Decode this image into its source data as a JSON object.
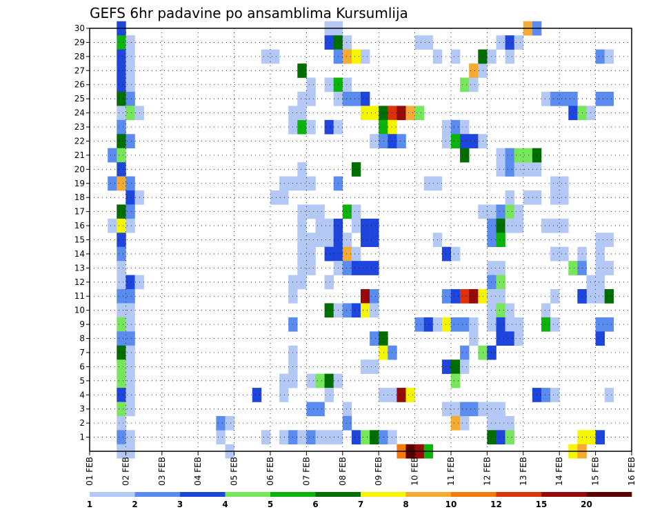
{
  "chart_data": {
    "type": "heatmap",
    "title": "GEFS 6hr padavine po ansamblima Kursumlija",
    "x_ticks": [
      "01 FEB",
      "02 FEB",
      "03 FEB",
      "04 FEB",
      "05 FEB",
      "06 FEB",
      "07 FEB",
      "08 FEB",
      "09 FEB",
      "10 FEB",
      "11 FEB",
      "12 FEB",
      "13 FEB",
      "14 FEB",
      "15 FEB",
      "16 FEB"
    ],
    "y_ticks": [
      1,
      2,
      3,
      4,
      5,
      6,
      7,
      8,
      9,
      10,
      11,
      12,
      13,
      14,
      15,
      16,
      17,
      18,
      19,
      20,
      21,
      22,
      23,
      24,
      25,
      26,
      27,
      28,
      29,
      30
    ],
    "y_range": [
      0,
      30
    ],
    "x_steps": 60,
    "grid": true,
    "colorbar": {
      "labels": [
        "1",
        "2",
        "3",
        "4",
        "5",
        "6",
        "7",
        "8",
        "10",
        "12",
        "15",
        "20"
      ],
      "colors": [
        "#b4c8f5",
        "#5a8cf0",
        "#1e46dc",
        "#78e65a",
        "#0ab40a",
        "#006e00",
        "#f5f500",
        "#f5aa32",
        "#f5780a",
        "#dc320a",
        "#960a0a",
        "#5a0000"
      ]
    },
    "cells": [
      [
        3,
        30,
        3
      ],
      [
        3,
        29,
        5
      ],
      [
        4,
        29,
        1
      ],
      [
        3,
        28,
        3
      ],
      [
        4,
        28,
        1
      ],
      [
        3,
        27,
        3
      ],
      [
        4,
        27,
        1
      ],
      [
        3,
        26,
        3
      ],
      [
        4,
        26,
        1
      ],
      [
        3,
        25,
        6
      ],
      [
        4,
        25,
        2
      ],
      [
        3,
        24,
        1
      ],
      [
        4,
        24,
        4
      ],
      [
        5,
        24,
        1
      ],
      [
        3,
        23,
        2
      ],
      [
        3,
        22,
        6
      ],
      [
        4,
        22,
        2
      ],
      [
        2,
        21,
        2
      ],
      [
        3,
        21,
        4
      ],
      [
        3,
        20,
        3
      ],
      [
        2,
        19,
        2
      ],
      [
        3,
        19,
        8
      ],
      [
        4,
        19,
        2
      ],
      [
        4,
        18,
        3
      ],
      [
        5,
        18,
        1
      ],
      [
        3,
        17,
        6
      ],
      [
        4,
        17,
        2
      ],
      [
        2,
        16,
        1
      ],
      [
        3,
        16,
        7
      ],
      [
        4,
        16,
        1
      ],
      [
        3,
        15,
        3
      ],
      [
        3,
        14,
        2
      ],
      [
        3,
        13,
        1
      ],
      [
        3,
        12,
        1
      ],
      [
        4,
        12,
        3
      ],
      [
        5,
        12,
        1
      ],
      [
        3,
        11,
        2
      ],
      [
        4,
        11,
        2
      ],
      [
        3,
        10,
        1
      ],
      [
        4,
        10,
        1
      ],
      [
        3,
        9,
        4
      ],
      [
        4,
        9,
        1
      ],
      [
        3,
        8,
        2
      ],
      [
        4,
        8,
        2
      ],
      [
        3,
        7,
        6
      ],
      [
        4,
        7,
        1
      ],
      [
        3,
        6,
        4
      ],
      [
        4,
        6,
        1
      ],
      [
        3,
        5,
        4
      ],
      [
        4,
        5,
        1
      ],
      [
        3,
        4,
        3
      ],
      [
        4,
        4,
        1
      ],
      [
        3,
        3,
        4
      ],
      [
        4,
        3,
        1
      ],
      [
        3,
        2,
        1
      ],
      [
        3,
        1,
        2
      ],
      [
        4,
        1,
        1
      ],
      [
        3,
        0,
        1
      ],
      [
        4,
        0,
        1
      ],
      [
        15,
        0,
        1
      ],
      [
        14,
        1,
        1
      ],
      [
        14,
        2,
        2
      ],
      [
        15,
        2,
        1
      ],
      [
        18,
        4,
        3
      ],
      [
        19,
        1,
        1
      ],
      [
        22,
        6,
        1
      ],
      [
        22,
        7,
        1
      ],
      [
        22,
        9,
        2
      ],
      [
        22,
        11,
        1
      ],
      [
        22,
        12,
        1
      ],
      [
        23,
        12,
        1
      ],
      [
        21,
        19,
        1
      ],
      [
        22,
        19,
        1
      ],
      [
        23,
        19,
        1
      ],
      [
        24,
        19,
        1
      ],
      [
        20,
        18,
        1
      ],
      [
        21,
        18,
        1
      ],
      [
        21,
        5,
        1
      ],
      [
        22,
        5,
        1
      ],
      [
        21,
        4,
        1
      ],
      [
        21,
        1,
        1
      ],
      [
        22,
        1,
        2
      ],
      [
        23,
        1,
        1
      ],
      [
        19,
        28,
        1
      ],
      [
        20,
        28,
        1
      ],
      [
        22,
        23,
        1
      ],
      [
        23,
        23,
        5
      ],
      [
        24,
        23,
        1
      ],
      [
        22,
        24,
        1
      ],
      [
        23,
        24,
        1
      ],
      [
        23,
        25,
        1
      ],
      [
        24,
        25,
        1
      ],
      [
        23,
        27,
        6
      ],
      [
        24,
        26,
        1
      ],
      [
        23,
        20,
        1
      ],
      [
        23,
        17,
        1
      ],
      [
        23,
        16,
        1
      ],
      [
        23,
        15,
        1
      ],
      [
        23,
        14,
        1
      ],
      [
        23,
        13,
        1
      ],
      [
        24,
        13,
        1
      ],
      [
        24,
        14,
        1
      ],
      [
        24,
        15,
        1
      ],
      [
        25,
        15,
        1
      ],
      [
        25,
        16,
        1
      ],
      [
        24,
        17,
        1
      ],
      [
        26,
        30,
        1
      ],
      [
        27,
        30,
        1
      ],
      [
        26,
        29,
        3
      ],
      [
        27,
        29,
        6
      ],
      [
        28,
        29,
        1
      ],
      [
        27,
        28,
        2
      ],
      [
        28,
        28,
        8
      ],
      [
        29,
        28,
        7
      ],
      [
        30,
        28,
        1
      ],
      [
        26,
        26,
        1
      ],
      [
        27,
        26,
        5
      ],
      [
        28,
        26,
        1
      ],
      [
        27,
        25,
        1
      ],
      [
        28,
        25,
        2
      ],
      [
        29,
        25,
        2
      ],
      [
        30,
        25,
        3
      ],
      [
        30,
        24,
        7
      ],
      [
        31,
        24,
        7
      ],
      [
        32,
        24,
        6
      ],
      [
        33,
        24,
        10
      ],
      [
        34,
        24,
        11
      ],
      [
        35,
        24,
        8
      ],
      [
        36,
        24,
        4
      ],
      [
        32,
        23,
        5
      ],
      [
        33,
        23,
        7
      ],
      [
        31,
        22,
        1
      ],
      [
        32,
        22,
        2
      ],
      [
        33,
        22,
        3
      ],
      [
        34,
        22,
        2
      ],
      [
        26,
        23,
        3
      ],
      [
        27,
        23,
        1
      ],
      [
        29,
        20,
        6
      ],
      [
        27,
        19,
        2
      ],
      [
        25,
        17,
        1
      ],
      [
        28,
        17,
        5
      ],
      [
        29,
        17,
        1
      ],
      [
        26,
        16,
        1
      ],
      [
        27,
        16,
        3
      ],
      [
        29,
        16,
        1
      ],
      [
        30,
        16,
        3
      ],
      [
        31,
        16,
        3
      ],
      [
        26,
        15,
        1
      ],
      [
        27,
        15,
        3
      ],
      [
        28,
        15,
        1
      ],
      [
        30,
        15,
        3
      ],
      [
        31,
        15,
        3
      ],
      [
        26,
        14,
        3
      ],
      [
        27,
        14,
        3
      ],
      [
        28,
        14,
        8
      ],
      [
        29,
        14,
        1
      ],
      [
        27,
        13,
        1
      ],
      [
        28,
        13,
        2
      ],
      [
        29,
        13,
        3
      ],
      [
        30,
        13,
        3
      ],
      [
        31,
        13,
        3
      ],
      [
        26,
        12,
        1
      ],
      [
        30,
        11,
        11
      ],
      [
        31,
        11,
        2
      ],
      [
        26,
        10,
        6
      ],
      [
        27,
        10,
        1
      ],
      [
        28,
        10,
        2
      ],
      [
        29,
        10,
        3
      ],
      [
        30,
        10,
        7
      ],
      [
        31,
        10,
        1
      ],
      [
        31,
        8,
        2
      ],
      [
        32,
        8,
        6
      ],
      [
        32,
        7,
        7
      ],
      [
        33,
        7,
        2
      ],
      [
        30,
        6,
        1
      ],
      [
        31,
        6,
        1
      ],
      [
        24,
        5,
        1
      ],
      [
        25,
        5,
        4
      ],
      [
        26,
        5,
        6
      ],
      [
        27,
        5,
        1
      ],
      [
        26,
        4,
        1
      ],
      [
        24,
        3,
        2
      ],
      [
        25,
        3,
        2
      ],
      [
        28,
        3,
        1
      ],
      [
        28,
        2,
        2
      ],
      [
        24,
        1,
        2
      ],
      [
        25,
        1,
        1
      ],
      [
        26,
        1,
        1
      ],
      [
        27,
        1,
        1
      ],
      [
        29,
        1,
        3
      ],
      [
        30,
        1,
        4
      ],
      [
        31,
        1,
        6
      ],
      [
        32,
        1,
        2
      ],
      [
        33,
        1,
        1
      ],
      [
        34,
        0,
        9
      ],
      [
        35,
        0,
        12
      ],
      [
        36,
        0,
        11
      ],
      [
        37,
        0,
        5
      ],
      [
        32,
        4,
        1
      ],
      [
        33,
        4,
        1
      ],
      [
        34,
        4,
        11
      ],
      [
        35,
        4,
        7
      ],
      [
        30,
        6,
        1
      ],
      [
        36,
        29,
        1
      ],
      [
        37,
        29,
        1
      ],
      [
        38,
        28,
        1
      ],
      [
        40,
        28,
        1
      ],
      [
        39,
        23,
        1
      ],
      [
        40,
        23,
        2
      ],
      [
        41,
        23,
        1
      ],
      [
        39,
        22,
        1
      ],
      [
        40,
        22,
        5
      ],
      [
        41,
        22,
        3
      ],
      [
        42,
        22,
        3
      ],
      [
        43,
        22,
        1
      ],
      [
        41,
        21,
        6
      ],
      [
        41,
        26,
        4
      ],
      [
        42,
        26,
        1
      ],
      [
        42,
        27,
        8
      ],
      [
        43,
        27,
        1
      ],
      [
        43,
        28,
        6
      ],
      [
        44,
        28,
        1
      ],
      [
        46,
        28,
        1
      ],
      [
        45,
        29,
        1
      ],
      [
        46,
        29,
        3
      ],
      [
        47,
        29,
        1
      ],
      [
        48,
        30,
        8
      ],
      [
        49,
        30,
        2
      ],
      [
        37,
        19,
        1
      ],
      [
        38,
        19,
        1
      ],
      [
        38,
        15,
        1
      ],
      [
        39,
        14,
        3
      ],
      [
        40,
        14,
        1
      ],
      [
        43,
        17,
        1
      ],
      [
        44,
        17,
        1
      ],
      [
        45,
        17,
        2
      ],
      [
        46,
        17,
        4
      ],
      [
        47,
        17,
        1
      ],
      [
        44,
        16,
        2
      ],
      [
        45,
        16,
        6
      ],
      [
        46,
        16,
        1
      ],
      [
        44,
        15,
        2
      ],
      [
        45,
        15,
        5
      ],
      [
        44,
        13,
        1
      ],
      [
        45,
        13,
        1
      ],
      [
        44,
        12,
        2
      ],
      [
        45,
        12,
        4
      ],
      [
        39,
        11,
        2
      ],
      [
        40,
        11,
        3
      ],
      [
        41,
        11,
        10
      ],
      [
        42,
        11,
        11
      ],
      [
        43,
        11,
        7
      ],
      [
        44,
        11,
        1
      ],
      [
        45,
        11,
        1
      ],
      [
        44,
        10,
        1
      ],
      [
        45,
        10,
        4
      ],
      [
        46,
        10,
        1
      ],
      [
        36,
        9,
        2
      ],
      [
        37,
        9,
        3
      ],
      [
        38,
        9,
        1
      ],
      [
        39,
        9,
        7
      ],
      [
        40,
        9,
        2
      ],
      [
        41,
        9,
        2
      ],
      [
        42,
        9,
        1
      ],
      [
        44,
        9,
        1
      ],
      [
        45,
        9,
        3
      ],
      [
        46,
        9,
        1
      ],
      [
        47,
        9,
        1
      ],
      [
        42,
        8,
        1
      ],
      [
        45,
        8,
        3
      ],
      [
        46,
        8,
        3
      ],
      [
        47,
        8,
        1
      ],
      [
        41,
        7,
        2
      ],
      [
        43,
        7,
        4
      ],
      [
        44,
        7,
        3
      ],
      [
        39,
        6,
        3
      ],
      [
        40,
        6,
        6
      ],
      [
        41,
        6,
        1
      ],
      [
        40,
        5,
        4
      ],
      [
        39,
        3,
        1
      ],
      [
        40,
        3,
        1
      ],
      [
        41,
        3,
        2
      ],
      [
        42,
        3,
        2
      ],
      [
        43,
        3,
        1
      ],
      [
        44,
        3,
        1
      ],
      [
        45,
        3,
        1
      ],
      [
        40,
        2,
        8
      ],
      [
        41,
        2,
        1
      ],
      [
        44,
        2,
        1
      ],
      [
        45,
        2,
        1
      ],
      [
        46,
        2,
        1
      ],
      [
        44,
        1,
        6
      ],
      [
        45,
        1,
        3
      ],
      [
        46,
        1,
        4
      ],
      [
        45,
        20,
        1
      ],
      [
        46,
        20,
        2
      ],
      [
        47,
        20,
        1
      ],
      [
        48,
        20,
        1
      ],
      [
        49,
        20,
        1
      ],
      [
        45,
        21,
        1
      ],
      [
        46,
        21,
        2
      ],
      [
        47,
        21,
        4
      ],
      [
        48,
        21,
        4
      ],
      [
        49,
        21,
        6
      ],
      [
        46,
        18,
        1
      ],
      [
        48,
        18,
        1
      ],
      [
        49,
        18,
        1
      ],
      [
        47,
        16,
        1
      ],
      [
        50,
        16,
        1
      ],
      [
        51,
        16,
        1
      ],
      [
        52,
        16,
        1
      ],
      [
        50,
        25,
        1
      ],
      [
        51,
        25,
        2
      ],
      [
        52,
        25,
        2
      ],
      [
        53,
        25,
        2
      ],
      [
        53,
        24,
        3
      ],
      [
        54,
        24,
        4
      ],
      [
        55,
        24,
        1
      ],
      [
        56,
        25,
        2
      ],
      [
        57,
        25,
        2
      ],
      [
        51,
        19,
        1
      ],
      [
        52,
        19,
        1
      ],
      [
        51,
        18,
        1
      ],
      [
        52,
        18,
        1
      ],
      [
        51,
        14,
        1
      ],
      [
        52,
        14,
        1
      ],
      [
        54,
        14,
        1
      ],
      [
        53,
        13,
        4
      ],
      [
        54,
        13,
        2
      ],
      [
        51,
        11,
        1
      ],
      [
        54,
        11,
        3
      ],
      [
        55,
        11,
        1
      ],
      [
        56,
        11,
        1
      ],
      [
        57,
        11,
        6
      ],
      [
        50,
        10,
        1
      ],
      [
        50,
        9,
        5
      ],
      [
        51,
        9,
        1
      ],
      [
        56,
        9,
        2
      ],
      [
        57,
        9,
        2
      ],
      [
        56,
        8,
        3
      ],
      [
        49,
        4,
        3
      ],
      [
        50,
        4,
        2
      ],
      [
        51,
        4,
        1
      ],
      [
        57,
        4,
        1
      ],
      [
        54,
        1,
        7
      ],
      [
        55,
        1,
        7
      ],
      [
        56,
        1,
        3
      ],
      [
        53,
        0,
        7
      ],
      [
        54,
        0,
        8
      ],
      [
        56,
        28,
        2
      ],
      [
        57,
        28,
        1
      ],
      [
        56,
        15,
        1
      ],
      [
        57,
        15,
        1
      ],
      [
        56,
        14,
        1
      ],
      [
        56,
        13,
        1
      ],
      [
        57,
        13,
        1
      ],
      [
        54,
        11,
        3
      ],
      [
        56,
        12,
        1
      ],
      [
        55,
        12,
        1
      ]
    ]
  }
}
